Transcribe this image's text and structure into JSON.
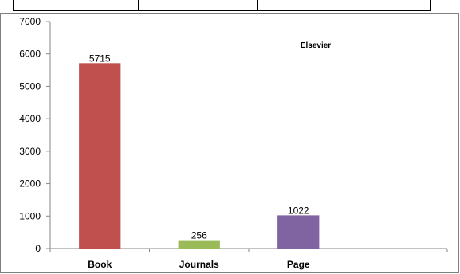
{
  "chart_data": {
    "type": "bar",
    "title": "Elsevier",
    "categories": [
      "Book",
      "Journals",
      "Page"
    ],
    "values": [
      5715,
      256,
      1022
    ],
    "bar_colors": [
      "#C0504D",
      "#9BBB59",
      "#8064A2"
    ],
    "ylim": [
      0,
      7000
    ],
    "yticks": [
      0,
      1000,
      2000,
      3000,
      4000,
      5000,
      6000,
      7000
    ],
    "category_slots": 4,
    "grid": false,
    "legend": "none",
    "xlabel": "",
    "ylabel": ""
  }
}
